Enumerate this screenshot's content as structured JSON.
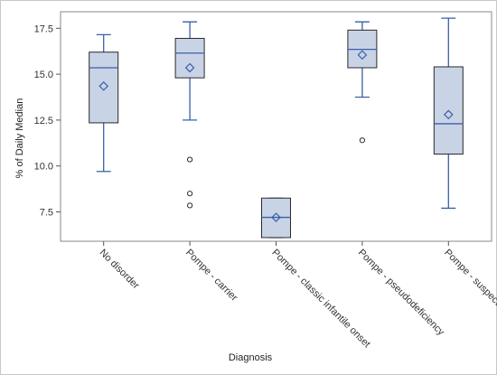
{
  "chart_data": {
    "type": "box",
    "xlabel": "Diagnosis",
    "ylabel": "% of Daily Median",
    "ylim": [
      5.9,
      18.4
    ],
    "yticks": [
      7.5,
      10.0,
      12.5,
      15.0,
      17.5
    ],
    "ytick_labels": [
      "7.5",
      "10.0",
      "12.5",
      "15.0",
      "17.5"
    ],
    "categories": [
      "No disorder",
      "Pompe - carrier",
      "Pompe - classic infantile onset",
      "Pompe - pseudodeficiency",
      "Pompe - suspected late onset"
    ],
    "boxes": [
      {
        "whisker_low": 9.7,
        "q1": 12.35,
        "median": 15.35,
        "q3": 16.2,
        "whisker_high": 17.15,
        "mean": 14.35,
        "outliers": []
      },
      {
        "whisker_low": 12.5,
        "q1": 14.8,
        "median": 16.15,
        "q3": 16.95,
        "whisker_high": 17.85,
        "mean": 15.35,
        "outliers": [
          10.35,
          8.5,
          7.85
        ]
      },
      {
        "whisker_low": 6.1,
        "q1": 6.1,
        "median": 7.2,
        "q3": 8.25,
        "whisker_high": 8.25,
        "mean": 7.2,
        "outliers": []
      },
      {
        "whisker_low": 13.75,
        "q1": 15.35,
        "median": 16.35,
        "q3": 17.4,
        "whisker_high": 17.85,
        "mean": 16.05,
        "outliers": [
          11.4
        ]
      },
      {
        "whisker_low": 7.7,
        "q1": 10.65,
        "median": 12.3,
        "q3": 15.4,
        "whisker_high": 18.05,
        "mean": 12.8,
        "outliers": []
      }
    ],
    "colors": {
      "box_fill": "#c9d3e6",
      "box_edge": "#2a2a2a",
      "whisker": "#3a5fa8",
      "median": "#3a5fa8",
      "mean_marker": "#3a5fa8",
      "outlier": "#2a2a2a",
      "frame": "#8a8a8a"
    },
    "grid": false,
    "legend": "none"
  }
}
